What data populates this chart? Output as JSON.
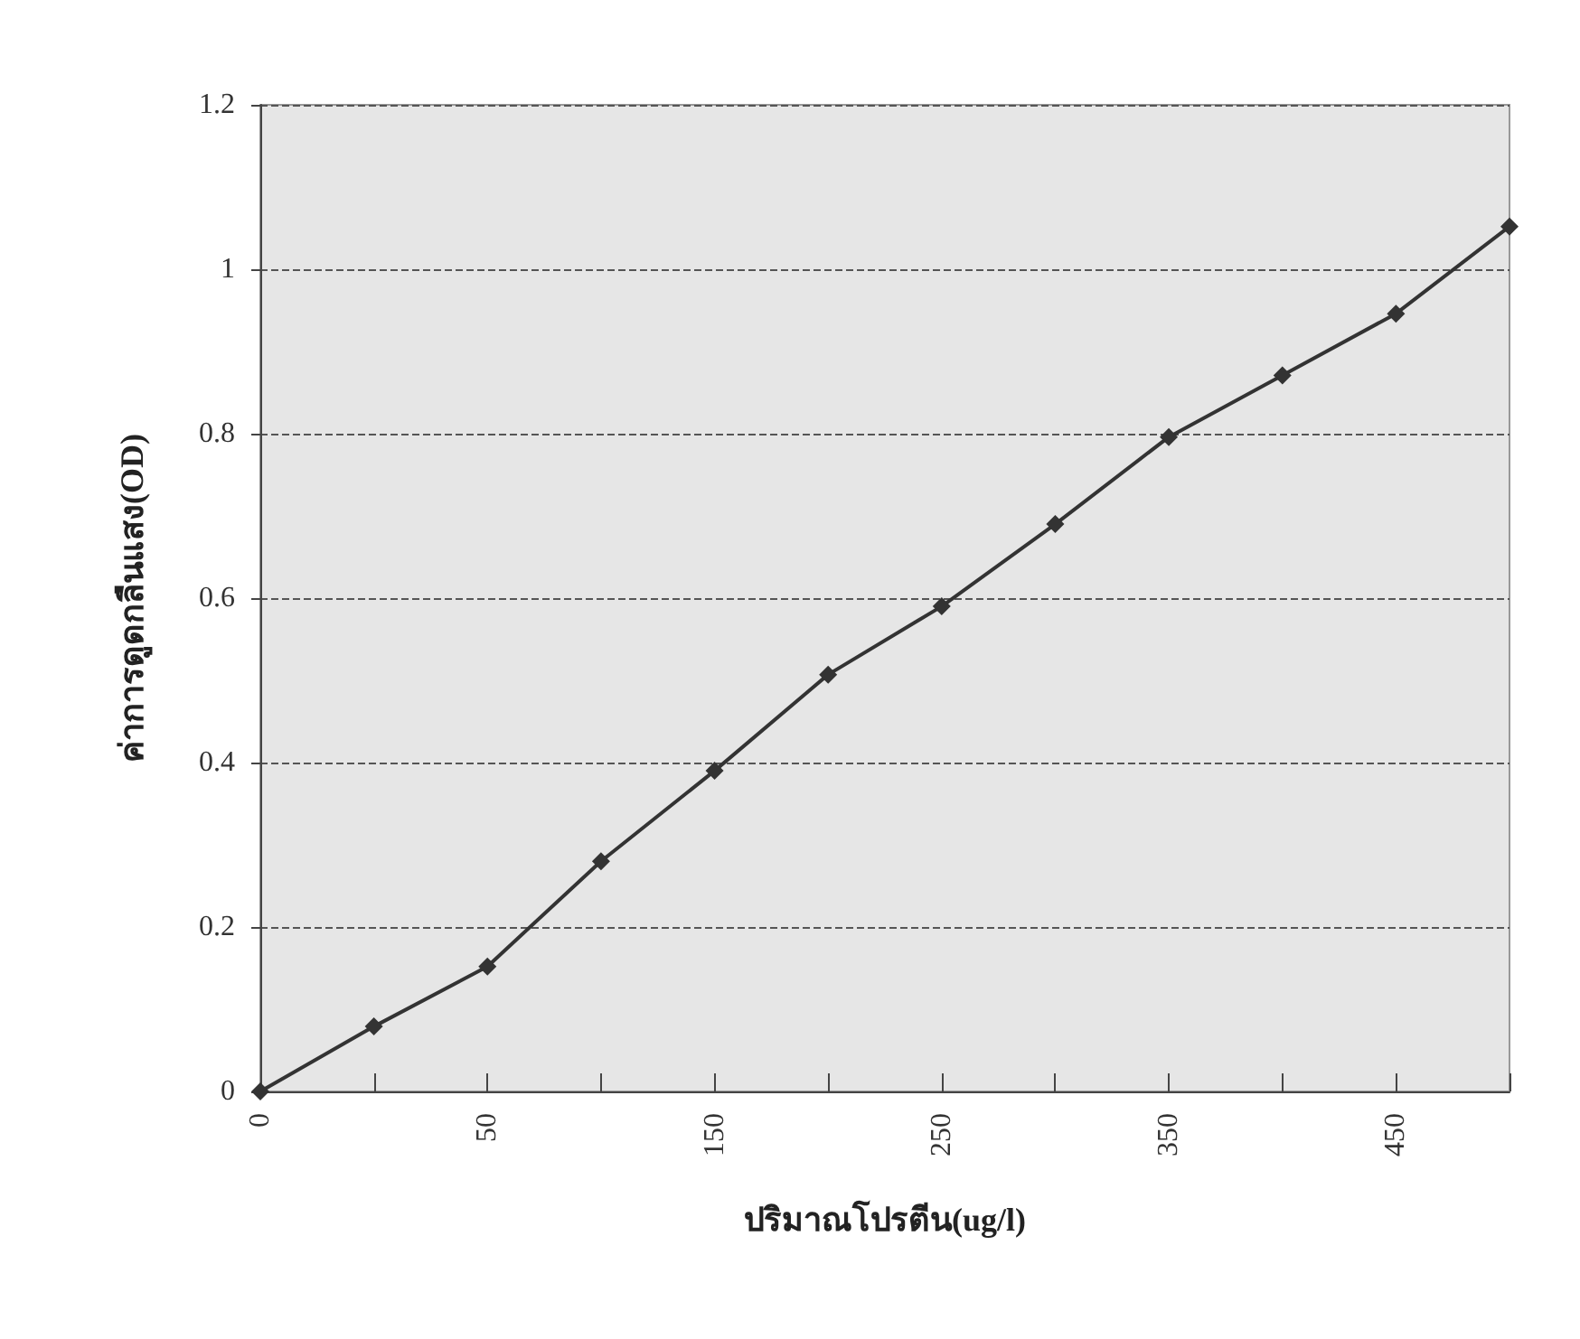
{
  "chart_data": {
    "type": "line",
    "xlabel": "ปริมาณโปรตีน(ug/l)",
    "ylabel": "ค่าการดูดกลืนแสง(OD)",
    "categories": [
      "0",
      null,
      "50",
      null,
      "150",
      null,
      "250",
      null,
      "350",
      null,
      "450",
      null
    ],
    "series": [
      {
        "color": "#333333",
        "values": [
          0,
          0.079,
          0.152,
          0.28,
          0.39,
          0.507,
          0.59,
          0.69,
          0.796,
          0.871,
          0.946,
          1.052
        ]
      }
    ],
    "ylim": [
      0,
      1.2
    ],
    "yticks": [
      0,
      0.2,
      0.4,
      0.6,
      0.8,
      1,
      1.2
    ],
    "grid": "y",
    "marker": "diamond",
    "line_style": "solid"
  }
}
